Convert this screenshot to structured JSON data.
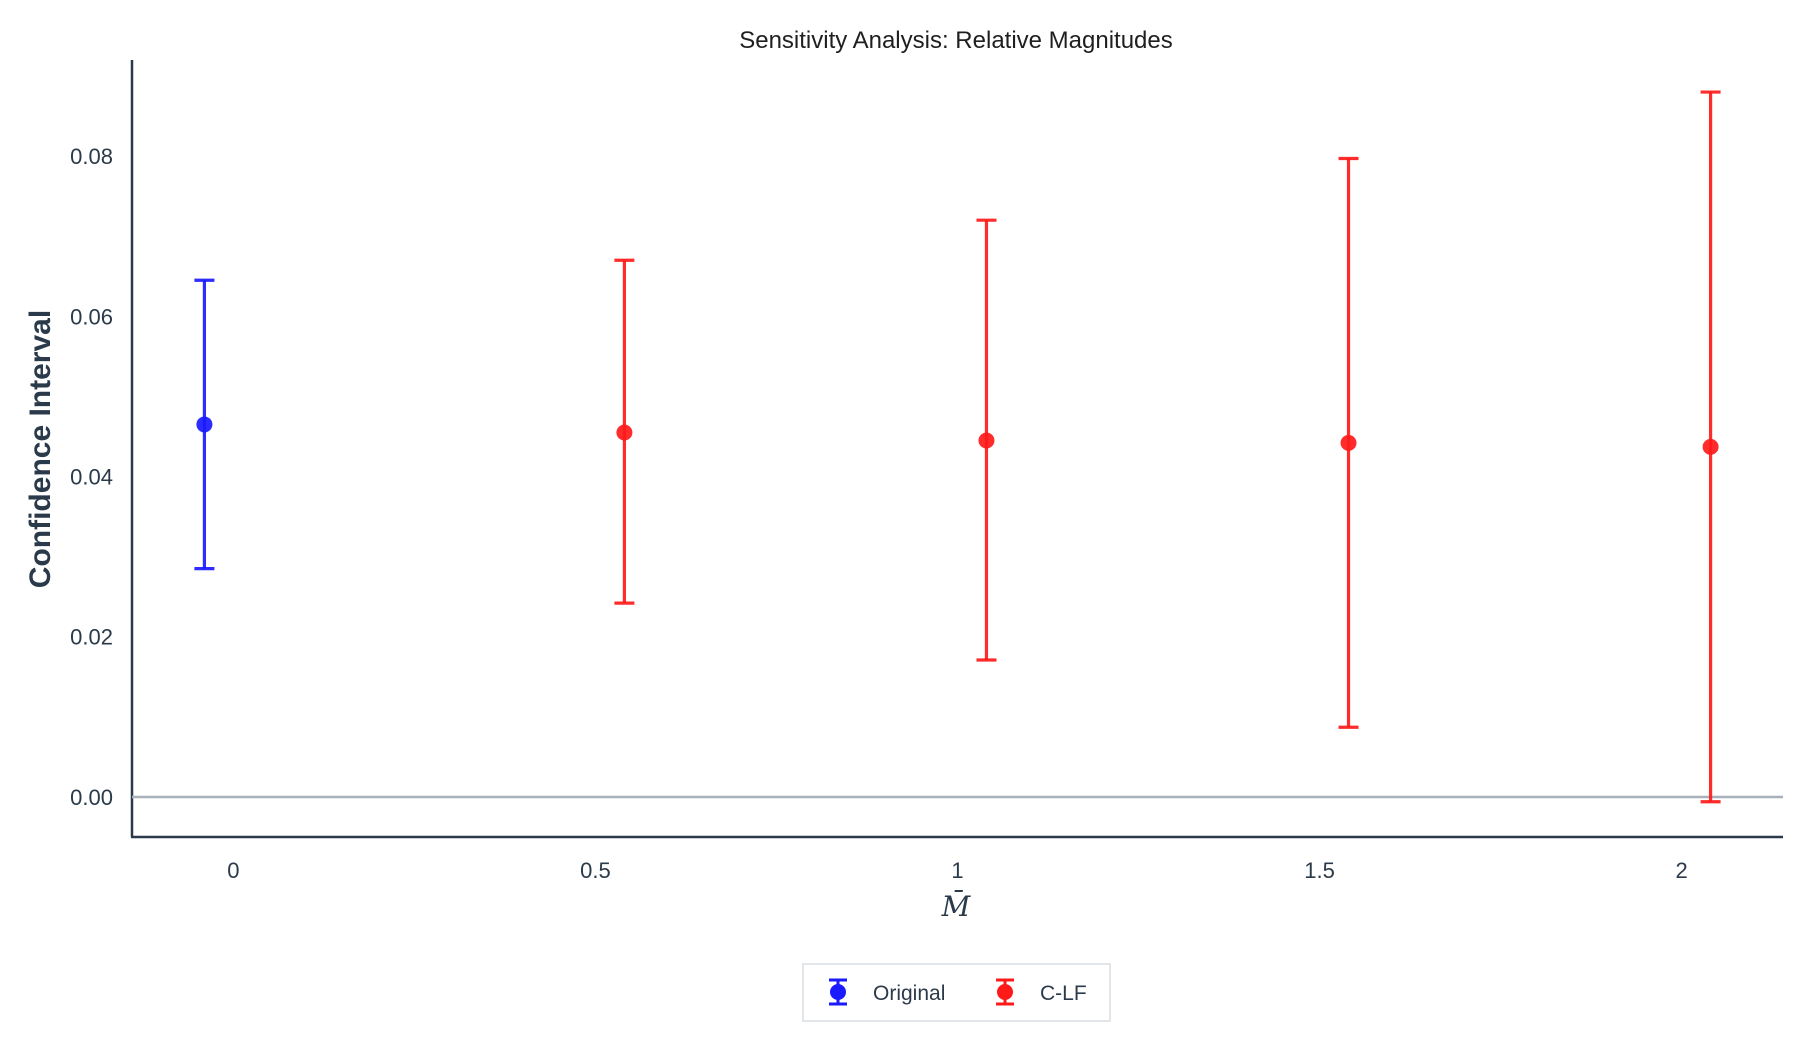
{
  "chart_data": {
    "type": "scatter",
    "title": "Sensitivity Analysis: Relative Magnitudes",
    "xlabel": "M̄",
    "ylabel": "Confidence Interval",
    "x_ticks": [
      "0",
      "0.5",
      "1",
      "1.5",
      "2"
    ],
    "x_tick_values": [
      0,
      0.5,
      1,
      1.5,
      2
    ],
    "y_ticks": [
      "0.00",
      "0.02",
      "0.04",
      "0.06",
      "0.08"
    ],
    "y_tick_values": [
      0,
      0.02,
      0.04,
      0.06,
      0.08
    ],
    "xlim": [
      -0.14,
      2.14
    ],
    "ylim": [
      -0.005,
      0.092
    ],
    "reference_line_y": 0,
    "grid": false,
    "legend_position": "bottom-center",
    "series": [
      {
        "name": "Original",
        "color": "#1a1aff",
        "points": [
          {
            "x": -0.04,
            "y": 0.0465,
            "low": 0.0285,
            "high": 0.0645
          }
        ]
      },
      {
        "name": "C-LF",
        "color": "#ff1a1a",
        "points": [
          {
            "x": 0.54,
            "y": 0.0455,
            "low": 0.0242,
            "high": 0.067
          },
          {
            "x": 1.04,
            "y": 0.0445,
            "low": 0.0171,
            "high": 0.072
          },
          {
            "x": 1.54,
            "y": 0.0442,
            "low": 0.0087,
            "high": 0.0797
          },
          {
            "x": 2.04,
            "y": 0.0437,
            "low": -0.0006,
            "high": 0.088
          }
        ]
      }
    ]
  }
}
